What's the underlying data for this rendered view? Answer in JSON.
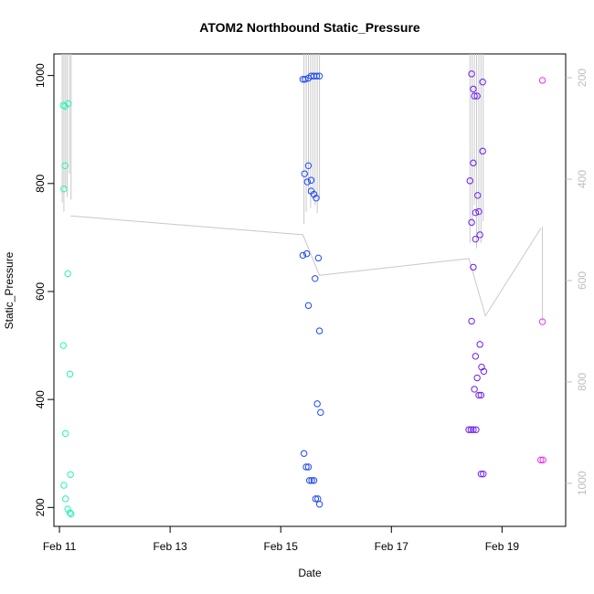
{
  "chart_data": {
    "type": "scatter",
    "title": "ATOM2 Northbound Static_Pressure",
    "xlabel": "Date",
    "ylabel": "Static_Pressure",
    "xlim": [
      10.9,
      20.15
    ],
    "ylim": [
      165,
      1040
    ],
    "x_ticks": [
      {
        "v": 11,
        "label": "Feb 11"
      },
      {
        "v": 13,
        "label": "Feb 13"
      },
      {
        "v": 15,
        "label": "Feb 15"
      },
      {
        "v": 17,
        "label": "Feb 17"
      },
      {
        "v": 19,
        "label": "Feb 19"
      }
    ],
    "y_ticks": [
      200,
      400,
      600,
      800,
      1000
    ],
    "y2_ticks": [
      200,
      400,
      600,
      800,
      1000
    ],
    "y2_scale": "reversed",
    "y2_range_at_ylim": [
      1085,
      153
    ],
    "grid": false,
    "marker": "open-circle",
    "line_color": "#c8c8c8",
    "profile_line": [
      [
        11.2,
        740
      ],
      [
        15.4,
        705
      ],
      [
        15.7,
        630
      ],
      [
        18.4,
        661
      ],
      [
        18.7,
        555
      ],
      [
        19.7,
        717
      ]
    ],
    "spikes": [
      [
        11.05,
        765,
        0
      ],
      [
        11.08,
        748,
        0
      ],
      [
        11.11,
        790,
        0
      ],
      [
        11.14,
        775,
        0
      ],
      [
        11.18,
        818,
        0
      ],
      [
        11.21,
        770,
        0
      ],
      [
        15.42,
        725,
        0
      ],
      [
        15.46,
        748,
        0
      ],
      [
        15.5,
        780,
        0
      ],
      [
        15.54,
        755,
        0
      ],
      [
        15.58,
        790,
        0
      ],
      [
        15.62,
        760,
        0
      ],
      [
        15.66,
        745,
        0
      ],
      [
        15.7,
        770,
        0
      ],
      [
        18.42,
        690,
        0
      ],
      [
        18.46,
        720,
        0
      ],
      [
        18.5,
        760,
        0
      ],
      [
        18.54,
        680,
        0
      ],
      [
        18.58,
        705,
        0
      ],
      [
        18.62,
        690,
        0
      ],
      [
        18.66,
        730,
        0
      ],
      [
        19.73,
        720,
        545
      ]
    ],
    "series": [
      {
        "color": "#27f3b6",
        "points": [
          [
            11.07,
            945
          ],
          [
            11.1,
            943
          ],
          [
            11.16,
            948
          ],
          [
            11.1,
            833
          ],
          [
            11.08,
            790
          ],
          [
            11.15,
            633
          ],
          [
            11.07,
            500
          ],
          [
            11.19,
            447
          ],
          [
            11.11,
            337
          ],
          [
            11.08,
            241
          ],
          [
            11.11,
            216
          ],
          [
            11.15,
            197
          ],
          [
            11.2,
            261
          ],
          [
            11.19,
            190
          ],
          [
            11.21,
            188
          ]
        ]
      },
      {
        "color": "#1f49f2",
        "points": [
          [
            15.4,
            993
          ],
          [
            15.44,
            993
          ],
          [
            15.5,
            995
          ],
          [
            15.55,
            999
          ],
          [
            15.6,
            999
          ],
          [
            15.65,
            999
          ],
          [
            15.7,
            999
          ],
          [
            15.5,
            833
          ],
          [
            15.43,
            818
          ],
          [
            15.48,
            803
          ],
          [
            15.55,
            806
          ],
          [
            15.55,
            786
          ],
          [
            15.6,
            780
          ],
          [
            15.64,
            773
          ],
          [
            15.4,
            667
          ],
          [
            15.47,
            670
          ],
          [
            15.68,
            662
          ],
          [
            15.62,
            624
          ],
          [
            15.5,
            574
          ],
          [
            15.7,
            527
          ],
          [
            15.66,
            392
          ],
          [
            15.72,
            376
          ],
          [
            15.42,
            300
          ],
          [
            15.46,
            275
          ],
          [
            15.5,
            275
          ],
          [
            15.52,
            250
          ],
          [
            15.56,
            250
          ],
          [
            15.6,
            250
          ],
          [
            15.63,
            216
          ],
          [
            15.67,
            216
          ],
          [
            15.7,
            206
          ]
        ]
      },
      {
        "color": "#6b1ff2",
        "points": [
          [
            18.45,
            1003
          ],
          [
            18.65,
            988
          ],
          [
            18.48,
            975
          ],
          [
            18.5,
            962
          ],
          [
            18.55,
            962
          ],
          [
            18.65,
            860
          ],
          [
            18.48,
            838
          ],
          [
            18.42,
            805
          ],
          [
            18.56,
            778
          ],
          [
            18.52,
            746
          ],
          [
            18.58,
            748
          ],
          [
            18.45,
            728
          ],
          [
            18.6,
            705
          ],
          [
            18.52,
            697
          ],
          [
            18.48,
            645
          ],
          [
            18.45,
            545
          ],
          [
            18.6,
            502
          ],
          [
            18.52,
            480
          ],
          [
            18.63,
            460
          ],
          [
            18.67,
            452
          ],
          [
            18.55,
            440
          ],
          [
            18.5,
            419
          ],
          [
            18.58,
            408
          ],
          [
            18.62,
            408
          ],
          [
            18.4,
            344
          ],
          [
            18.44,
            344
          ],
          [
            18.48,
            344
          ],
          [
            18.53,
            344
          ],
          [
            18.62,
            262
          ],
          [
            18.66,
            262
          ]
        ]
      },
      {
        "color": "#e62ef2",
        "points": [
          [
            19.73,
            991
          ],
          [
            19.73,
            544
          ],
          [
            19.7,
            288
          ],
          [
            19.74,
            288
          ]
        ]
      }
    ]
  }
}
